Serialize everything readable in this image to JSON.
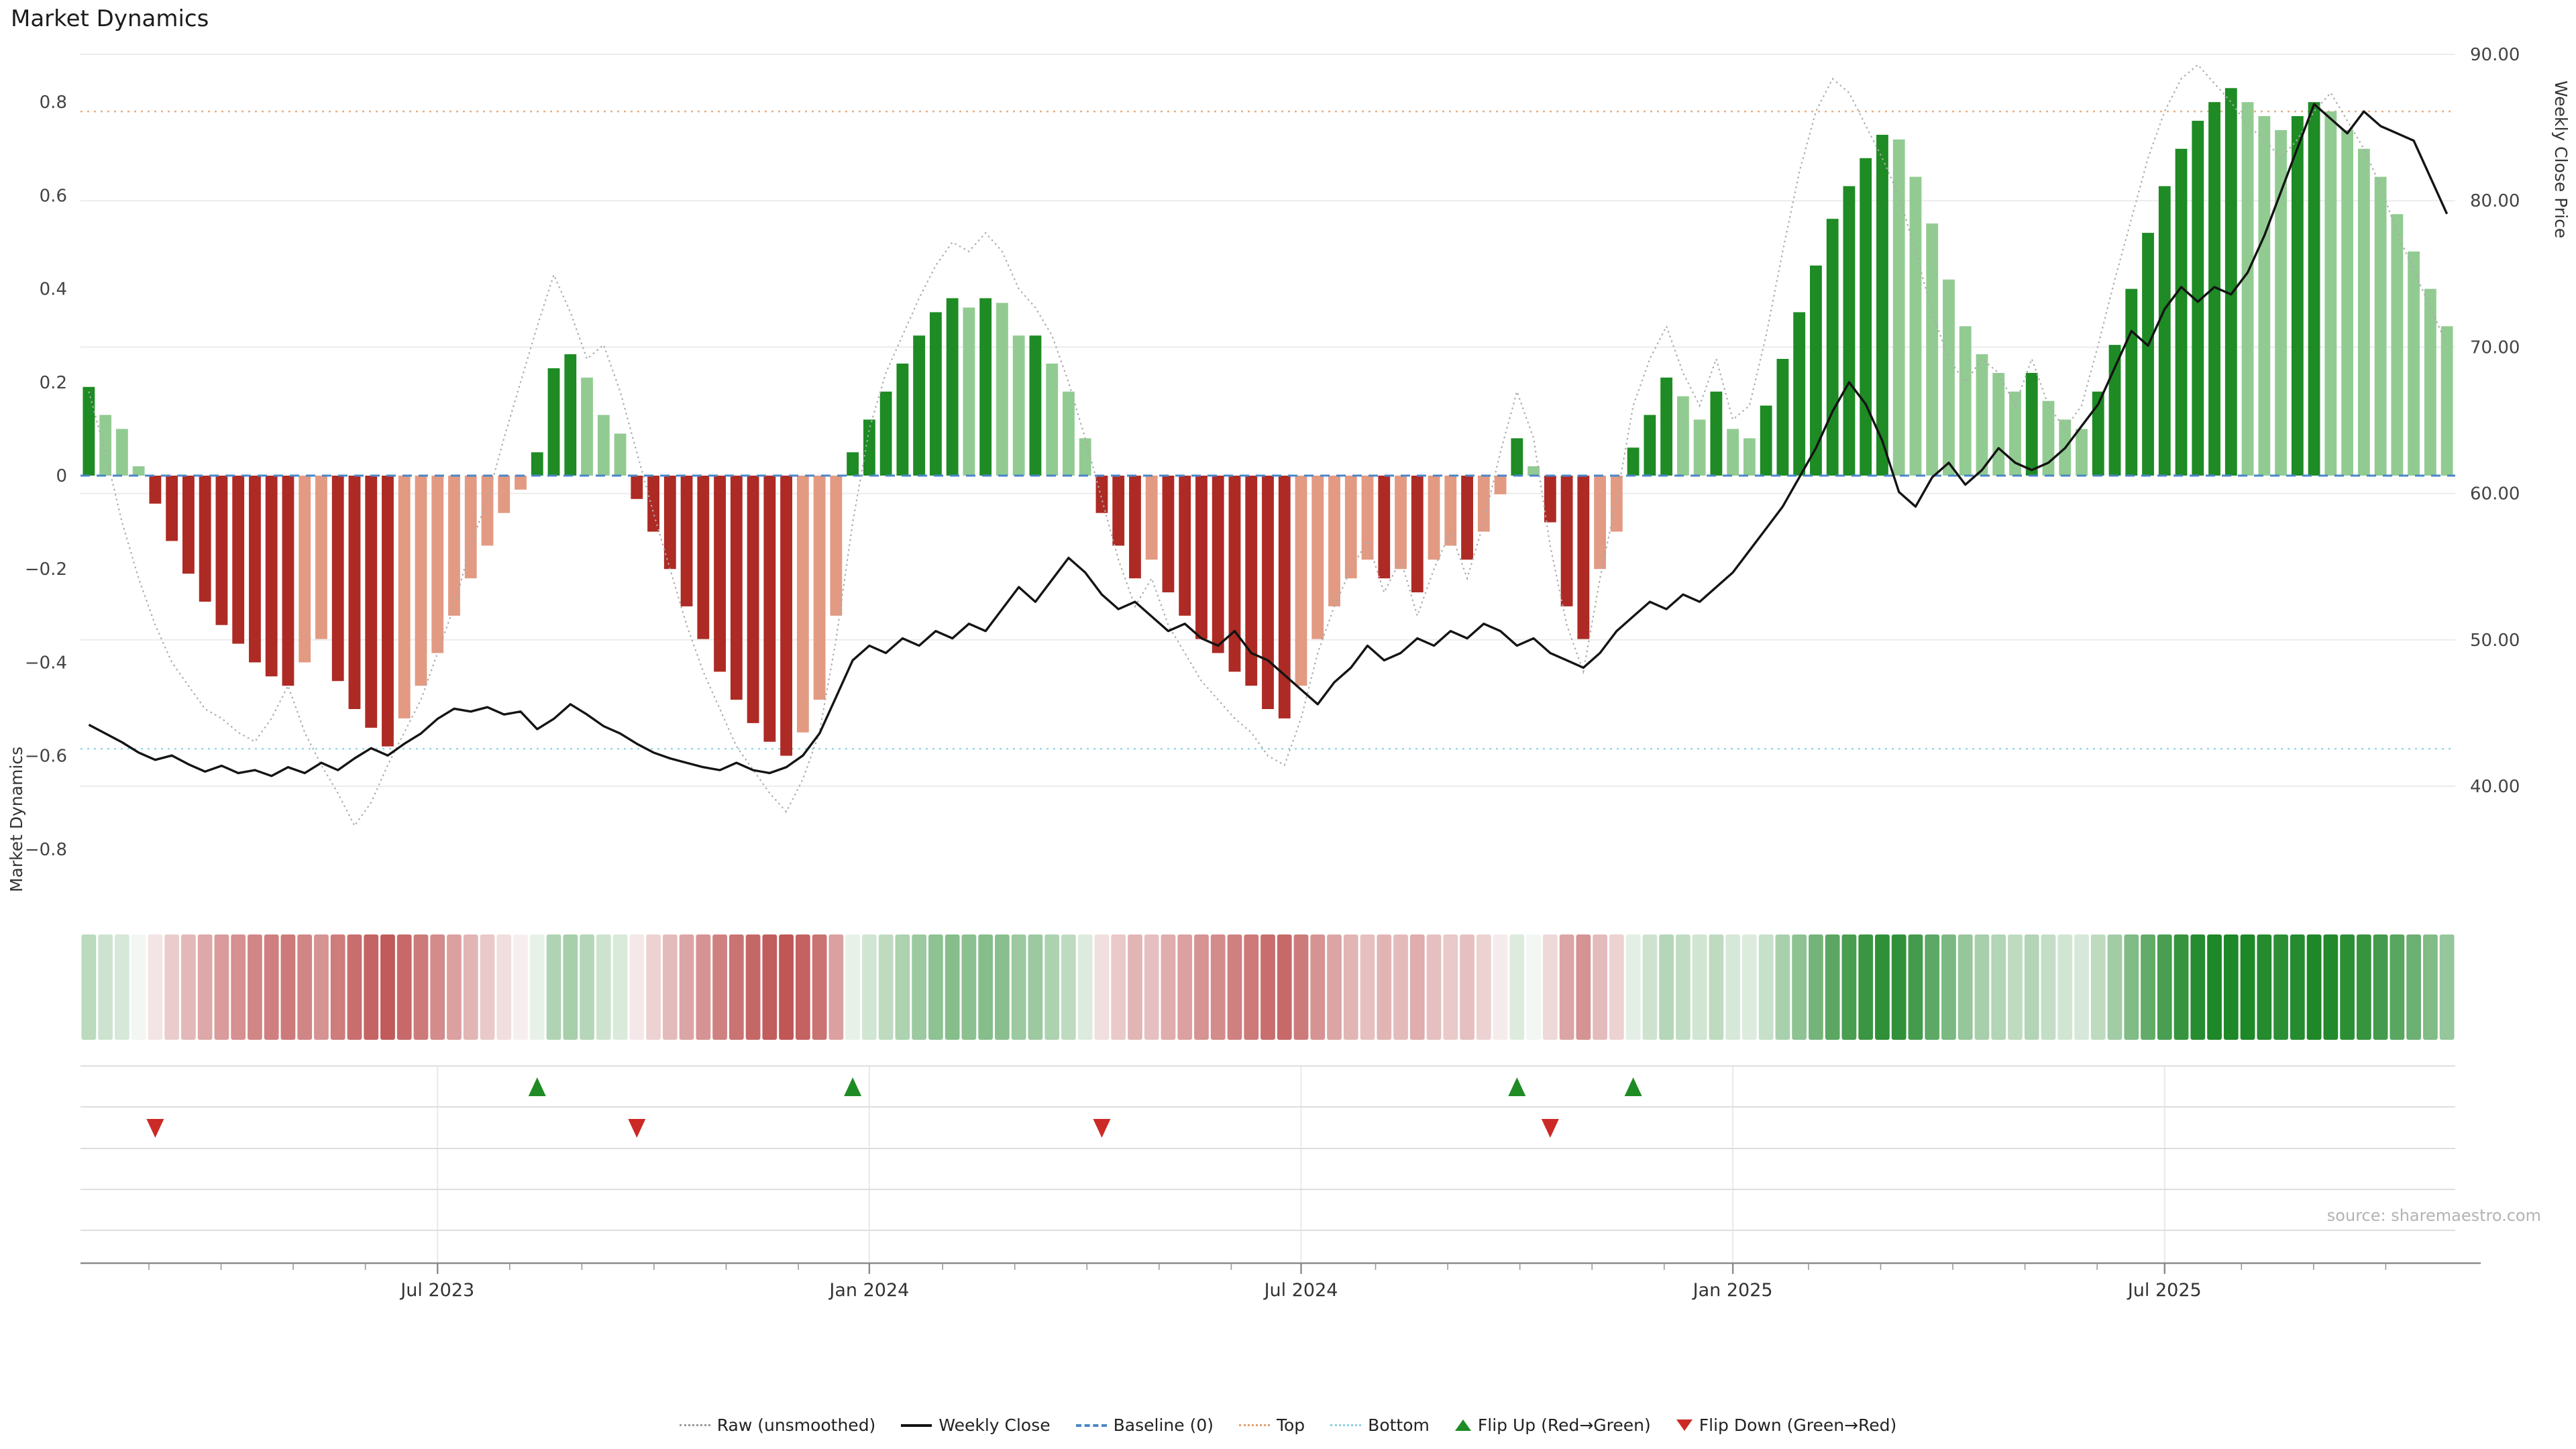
{
  "title": "Market Dynamics",
  "source": "source: sharemaestro.com",
  "axes": {
    "left_title": "Market Dynamics",
    "right_title": "Weekly Close Price",
    "left_ticks": [
      {
        "value": 0.8,
        "label": "0.8"
      },
      {
        "value": 0.6,
        "label": "0.6"
      },
      {
        "value": 0.4,
        "label": "0.4"
      },
      {
        "value": 0.2,
        "label": "0.2"
      },
      {
        "value": 0.0,
        "label": "0"
      },
      {
        "value": -0.2,
        "label": "−0.2"
      },
      {
        "value": -0.4,
        "label": "−0.4"
      },
      {
        "value": -0.6,
        "label": "−0.6"
      },
      {
        "value": -0.8,
        "label": "−0.8"
      }
    ],
    "right_ticks": [
      {
        "value": 90,
        "label": "90.00"
      },
      {
        "value": 80,
        "label": "80.00"
      },
      {
        "value": 70,
        "label": "70.00"
      },
      {
        "value": 60,
        "label": "60.00"
      },
      {
        "value": 50,
        "label": "50.00"
      },
      {
        "value": 40,
        "label": "40.00"
      }
    ]
  },
  "legend": {
    "items": [
      {
        "label": "Raw (unsmoothed)"
      },
      {
        "label": "Weekly Close"
      },
      {
        "label": "Baseline (0)"
      },
      {
        "label": "Top"
      },
      {
        "label": "Bottom"
      },
      {
        "label": "Flip Up (Red→Green)"
      },
      {
        "label": "Flip Down (Green→Red)"
      }
    ]
  },
  "chart_data": {
    "type": "combo",
    "interval": "weekly",
    "x_ticks": [
      {
        "label": "Jul 2023",
        "index": 21
      },
      {
        "label": "Jan 2024",
        "index": 47
      },
      {
        "label": "Jul 2024",
        "index": 73
      },
      {
        "label": "Jan 2025",
        "index": 99
      },
      {
        "label": "Jul 2025",
        "index": 125
      }
    ],
    "ylim_left": [
      -0.9,
      0.9
    ],
    "ylim_right": [
      40,
      90
    ],
    "legend_position": "bottom",
    "reference_lines": {
      "baseline": 0,
      "top": 0.78,
      "bottom": -0.585
    },
    "flip_up_indices": [
      27,
      46,
      86,
      93
    ],
    "flip_down_indices": [
      4,
      33,
      61,
      88
    ],
    "series_bars": {
      "name": "Market Dynamics",
      "type": "bar",
      "axis": "left",
      "values": [
        0.19,
        0.13,
        0.1,
        0.02,
        -0.06,
        -0.14,
        -0.21,
        -0.27,
        -0.32,
        -0.36,
        -0.4,
        -0.43,
        -0.45,
        -0.4,
        -0.35,
        -0.44,
        -0.5,
        -0.54,
        -0.58,
        -0.52,
        -0.45,
        -0.38,
        -0.3,
        -0.22,
        -0.15,
        -0.08,
        -0.03,
        0.05,
        0.23,
        0.26,
        0.21,
        0.13,
        0.09,
        -0.05,
        -0.12,
        -0.2,
        -0.28,
        -0.35,
        -0.42,
        -0.48,
        -0.53,
        -0.57,
        -0.6,
        -0.55,
        -0.48,
        -0.3,
        0.05,
        0.12,
        0.18,
        0.24,
        0.3,
        0.35,
        0.38,
        0.36,
        0.38,
        0.37,
        0.3,
        0.3,
        0.24,
        0.18,
        0.08,
        -0.08,
        -0.15,
        -0.22,
        -0.18,
        -0.25,
        -0.3,
        -0.35,
        -0.38,
        -0.42,
        -0.45,
        -0.5,
        -0.52,
        -0.45,
        -0.35,
        -0.28,
        -0.22,
        -0.18,
        -0.22,
        -0.2,
        -0.25,
        -0.18,
        -0.15,
        -0.18,
        -0.12,
        -0.04,
        0.08,
        0.02,
        -0.1,
        -0.28,
        -0.35,
        -0.2,
        -0.12,
        0.06,
        0.13,
        0.21,
        0.17,
        0.12,
        0.18,
        0.1,
        0.08,
        0.15,
        0.25,
        0.35,
        0.45,
        0.55,
        0.62,
        0.68,
        0.73,
        0.72,
        0.64,
        0.54,
        0.42,
        0.32,
        0.26,
        0.22,
        0.18,
        0.22,
        0.16,
        0.12,
        0.1,
        0.18,
        0.28,
        0.4,
        0.52,
        0.62,
        0.7,
        0.76,
        0.8,
        0.83,
        0.8,
        0.77,
        0.74,
        0.77,
        0.8,
        0.78,
        0.74,
        0.7,
        0.64,
        0.56,
        0.48,
        0.4,
        0.32
      ]
    },
    "series_raw": {
      "name": "Raw (unsmoothed)",
      "type": "line",
      "axis": "left",
      "values": [
        0.18,
        0.05,
        -0.1,
        -0.22,
        -0.32,
        -0.4,
        -0.45,
        -0.5,
        -0.52,
        -0.55,
        -0.57,
        -0.52,
        -0.45,
        -0.55,
        -0.62,
        -0.68,
        -0.75,
        -0.7,
        -0.62,
        -0.55,
        -0.48,
        -0.38,
        -0.28,
        -0.15,
        -0.05,
        0.08,
        0.2,
        0.32,
        0.43,
        0.35,
        0.25,
        0.28,
        0.18,
        0.05,
        -0.08,
        -0.2,
        -0.32,
        -0.42,
        -0.5,
        -0.58,
        -0.63,
        -0.68,
        -0.72,
        -0.65,
        -0.55,
        -0.35,
        -0.1,
        0.1,
        0.22,
        0.3,
        0.38,
        0.45,
        0.5,
        0.48,
        0.52,
        0.48,
        0.4,
        0.36,
        0.3,
        0.2,
        0.08,
        -0.05,
        -0.18,
        -0.28,
        -0.22,
        -0.32,
        -0.38,
        -0.44,
        -0.48,
        -0.52,
        -0.55,
        -0.6,
        -0.62,
        -0.52,
        -0.38,
        -0.28,
        -0.2,
        -0.14,
        -0.25,
        -0.18,
        -0.3,
        -0.2,
        -0.12,
        -0.22,
        -0.1,
        0.05,
        0.18,
        0.08,
        -0.15,
        -0.32,
        -0.42,
        -0.22,
        -0.05,
        0.15,
        0.25,
        0.32,
        0.22,
        0.15,
        0.25,
        0.12,
        0.15,
        0.3,
        0.48,
        0.65,
        0.78,
        0.85,
        0.82,
        0.75,
        0.68,
        0.6,
        0.48,
        0.35,
        0.25,
        0.2,
        0.25,
        0.22,
        0.15,
        0.25,
        0.15,
        0.1,
        0.15,
        0.28,
        0.42,
        0.55,
        0.68,
        0.78,
        0.85,
        0.88,
        0.84,
        0.8,
        0.75,
        0.72,
        0.68,
        0.72,
        0.78,
        0.82,
        0.76,
        0.7,
        0.62,
        0.52,
        0.44,
        0.36,
        0.28
      ]
    },
    "series_price": {
      "name": "Weekly Close",
      "type": "line",
      "axis": "right",
      "values": [
        44.2,
        43.6,
        43.0,
        42.3,
        41.8,
        42.1,
        41.5,
        41.0,
        41.4,
        40.9,
        41.1,
        40.7,
        41.3,
        40.9,
        41.6,
        41.1,
        41.9,
        42.6,
        42.1,
        42.9,
        43.6,
        44.6,
        45.3,
        45.1,
        45.4,
        44.9,
        45.1,
        43.9,
        44.6,
        45.6,
        44.9,
        44.1,
        43.6,
        42.9,
        42.3,
        41.9,
        41.6,
        41.3,
        41.1,
        41.6,
        41.1,
        40.9,
        41.3,
        42.1,
        43.6,
        46.1,
        48.6,
        49.6,
        49.1,
        50.1,
        49.6,
        50.6,
        50.1,
        51.1,
        50.6,
        52.1,
        53.6,
        52.6,
        54.1,
        55.6,
        54.6,
        53.1,
        52.1,
        52.6,
        51.6,
        50.6,
        51.1,
        50.1,
        49.6,
        50.6,
        49.1,
        48.6,
        47.6,
        46.6,
        45.6,
        47.1,
        48.1,
        49.6,
        48.6,
        49.1,
        50.1,
        49.6,
        50.6,
        50.1,
        51.1,
        50.6,
        49.6,
        50.1,
        49.1,
        48.6,
        48.1,
        49.1,
        50.6,
        51.6,
        52.6,
        52.1,
        53.1,
        52.6,
        53.6,
        54.6,
        56.1,
        57.6,
        59.1,
        61.1,
        63.1,
        65.6,
        67.6,
        66.1,
        63.6,
        60.1,
        59.1,
        61.1,
        62.1,
        60.6,
        61.6,
        63.1,
        62.1,
        61.6,
        62.1,
        63.1,
        64.6,
        66.1,
        68.6,
        71.1,
        70.1,
        72.6,
        74.1,
        73.1,
        74.1,
        73.6,
        75.1,
        77.6,
        80.6,
        83.6,
        86.6,
        85.6,
        84.6,
        86.1,
        85.1,
        84.6,
        84.1,
        81.6,
        79.1
      ]
    },
    "palette": {
      "bar_up_strong": "#1e8b24",
      "bar_up_soft": "#92cb92",
      "bar_down_strong": "#ae2a24",
      "bar_down_soft": "#e39a82",
      "flip_up": "#1f8b24",
      "flip_down": "#cc2a26",
      "baseline": "#4a86c8",
      "top_line": "#e6af85",
      "bottom_line": "#93d6e8",
      "raw_line": "#ababab",
      "price_line": "#141414"
    }
  }
}
